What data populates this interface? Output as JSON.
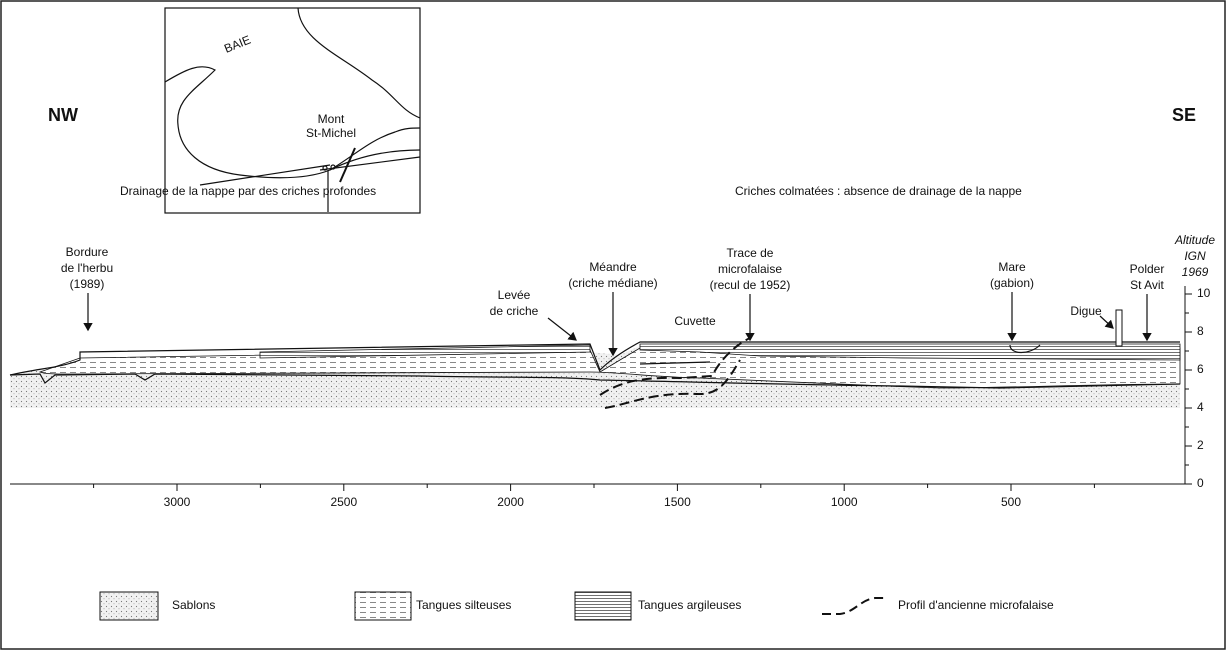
{
  "orientation": {
    "left": "NW",
    "right": "SE"
  },
  "inset_map": {
    "sea": "BAIE",
    "town": [
      "Mont",
      "St-Michel"
    ]
  },
  "headings": [
    "Drainage de la nappe par des criches profondes",
    "Criches colmatées : absence de drainage de la nappe"
  ],
  "annotations": [
    [
      "Bordure",
      "de l'herbu",
      "(1989)"
    ],
    [
      "Levée",
      "de criche"
    ],
    [
      "Méandre",
      "(criche médiane)"
    ],
    [
      "Cuvette"
    ],
    [
      "Trace de",
      "microfalaise",
      "(recul de 1952)"
    ],
    [
      "Mare",
      "(gabion)"
    ],
    [
      "Digue"
    ],
    [
      "Polder",
      "St Avit"
    ]
  ],
  "axis": {
    "title": [
      "Altitude",
      "IGN",
      "1969"
    ],
    "yticks": [
      0,
      2,
      4,
      6,
      8,
      10
    ],
    "xticks": [
      3000,
      2500,
      2000,
      1500,
      1000,
      500
    ]
  },
  "legend": [
    "Sablons",
    "Tangues silteuses",
    "Tangues argileuses",
    "Profil d'ancienne microfalaise"
  ]
}
